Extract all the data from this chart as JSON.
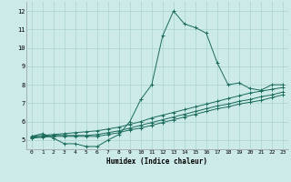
{
  "title": "",
  "xlabel": "Humidex (Indice chaleur)",
  "background_color": "#cceae8",
  "grid_color": "#aad4d2",
  "line_color": "#1a6b5a",
  "xlim": [
    -0.5,
    23.5
  ],
  "ylim": [
    4.5,
    12.5
  ],
  "xticks": [
    0,
    1,
    2,
    3,
    4,
    5,
    6,
    7,
    8,
    9,
    10,
    11,
    12,
    13,
    14,
    15,
    16,
    17,
    18,
    19,
    20,
    21,
    22,
    23
  ],
  "yticks": [
    5,
    6,
    7,
    8,
    9,
    10,
    11,
    12
  ],
  "series": [
    {
      "x": [
        0,
        1,
        2,
        3,
        4,
        5,
        6,
        7,
        8,
        9,
        10,
        11,
        12,
        13,
        14,
        15,
        16,
        17,
        18,
        19,
        20,
        21,
        22,
        23
      ],
      "y": [
        5.2,
        5.35,
        5.1,
        4.8,
        4.8,
        4.65,
        4.65,
        5.0,
        5.3,
        6.0,
        7.2,
        8.0,
        10.65,
        12.0,
        11.3,
        11.1,
        10.8,
        9.2,
        8.0,
        8.1,
        7.8,
        7.7,
        8.0,
        8.0
      ]
    },
    {
      "x": [
        0,
        1,
        2,
        3,
        4,
        5,
        6,
        7,
        8,
        9,
        10,
        11,
        12,
        13,
        14,
        15,
        16,
        17,
        18,
        19,
        20,
        21,
        22,
        23
      ],
      "y": [
        5.2,
        5.25,
        5.3,
        5.35,
        5.4,
        5.45,
        5.5,
        5.6,
        5.7,
        5.85,
        6.0,
        6.2,
        6.35,
        6.5,
        6.65,
        6.8,
        6.95,
        7.1,
        7.25,
        7.4,
        7.55,
        7.65,
        7.75,
        7.85
      ]
    },
    {
      "x": [
        0,
        1,
        2,
        3,
        4,
        5,
        6,
        7,
        8,
        9,
        10,
        11,
        12,
        13,
        14,
        15,
        16,
        17,
        18,
        19,
        20,
        21,
        22,
        23
      ],
      "y": [
        5.15,
        5.2,
        5.25,
        5.25,
        5.25,
        5.25,
        5.3,
        5.4,
        5.5,
        5.65,
        5.8,
        5.95,
        6.1,
        6.25,
        6.4,
        6.55,
        6.7,
        6.85,
        6.95,
        7.1,
        7.2,
        7.35,
        7.45,
        7.6
      ]
    },
    {
      "x": [
        0,
        1,
        2,
        3,
        4,
        5,
        6,
        7,
        8,
        9,
        10,
        11,
        12,
        13,
        14,
        15,
        16,
        17,
        18,
        19,
        20,
        21,
        22,
        23
      ],
      "y": [
        5.1,
        5.15,
        5.2,
        5.2,
        5.2,
        5.2,
        5.2,
        5.3,
        5.4,
        5.55,
        5.65,
        5.8,
        5.95,
        6.1,
        6.25,
        6.4,
        6.55,
        6.7,
        6.8,
        6.95,
        7.05,
        7.15,
        7.3,
        7.45
      ]
    }
  ]
}
